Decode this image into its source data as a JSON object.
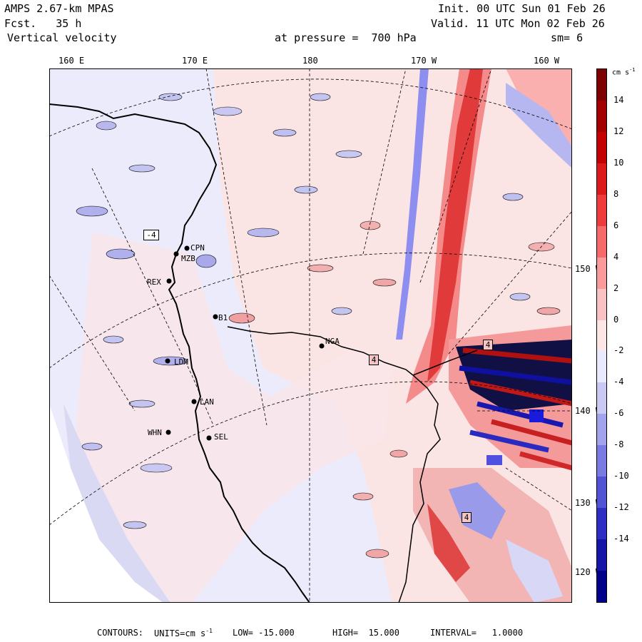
{
  "header": {
    "model": "AMPS 2.67-km MPAS",
    "fcst_label": "Fcst.",
    "fcst_value": "35 h",
    "field": "Vertical velocity",
    "init": "Init. 00 UTC Sun 01 Feb 26",
    "valid": "Valid. 11 UTC Mon 02 Feb 26",
    "pressure": "at pressure =  700 hPa",
    "smoothing": "sm= 6"
  },
  "top_ticks": [
    "160 E",
    "170 E",
    "180",
    "170 W",
    "160 W"
  ],
  "right_ticks": [
    "150 W",
    "140 W",
    "130 W",
    "120 W"
  ],
  "stations": [
    "CPN",
    "MZB",
    "REX",
    "LDM",
    "LAN",
    "SEL",
    "WHN",
    "NGA",
    "B1"
  ],
  "box_labels": [
    "-4",
    "4",
    "4",
    "4"
  ],
  "colorbar": {
    "unit": "cm s",
    "unit_exp": "-1",
    "labels": [
      "14",
      "12",
      "10",
      "8",
      "6",
      "4",
      "2",
      "0",
      "-2",
      "-4",
      "-6",
      "-8",
      "-10",
      "-12",
      "-14"
    ],
    "colors": [
      "#7f0000",
      "#a30000",
      "#c40000",
      "#dd1a1a",
      "#ef3b3b",
      "#f86a6a",
      "#fb9a9a",
      "#f9c3c3",
      "#fde6e6",
      "#eaeaff",
      "#c9c9f4",
      "#a3a3ec",
      "#7a7ae3",
      "#5252d6",
      "#2e2ec4",
      "#1515a8",
      "#00008a"
    ]
  },
  "footer": {
    "contours": "CONTOURS:",
    "units_prefix": "UNITS=cm s",
    "units_exp": "-1",
    "low": "LOW= -15.000",
    "high": "HIGH=  15.000",
    "interval": "INTERVAL=   1.0000"
  }
}
